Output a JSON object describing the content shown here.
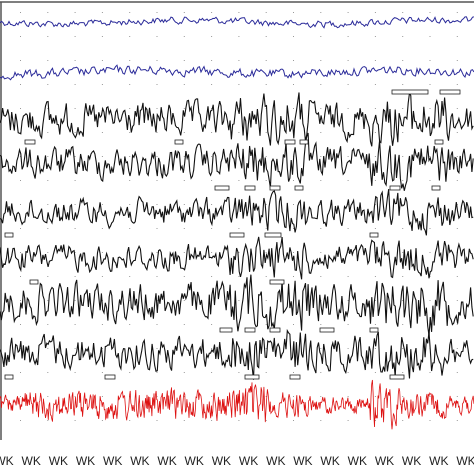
{
  "labels": [
    "WK",
    "WK",
    "WK",
    "WK",
    "WK",
    "WK",
    "WK",
    "WK",
    "WK",
    "WK",
    "WK",
    "WK",
    "WK",
    "WK",
    "WK",
    "WK",
    "WK",
    "WK"
  ]
}
